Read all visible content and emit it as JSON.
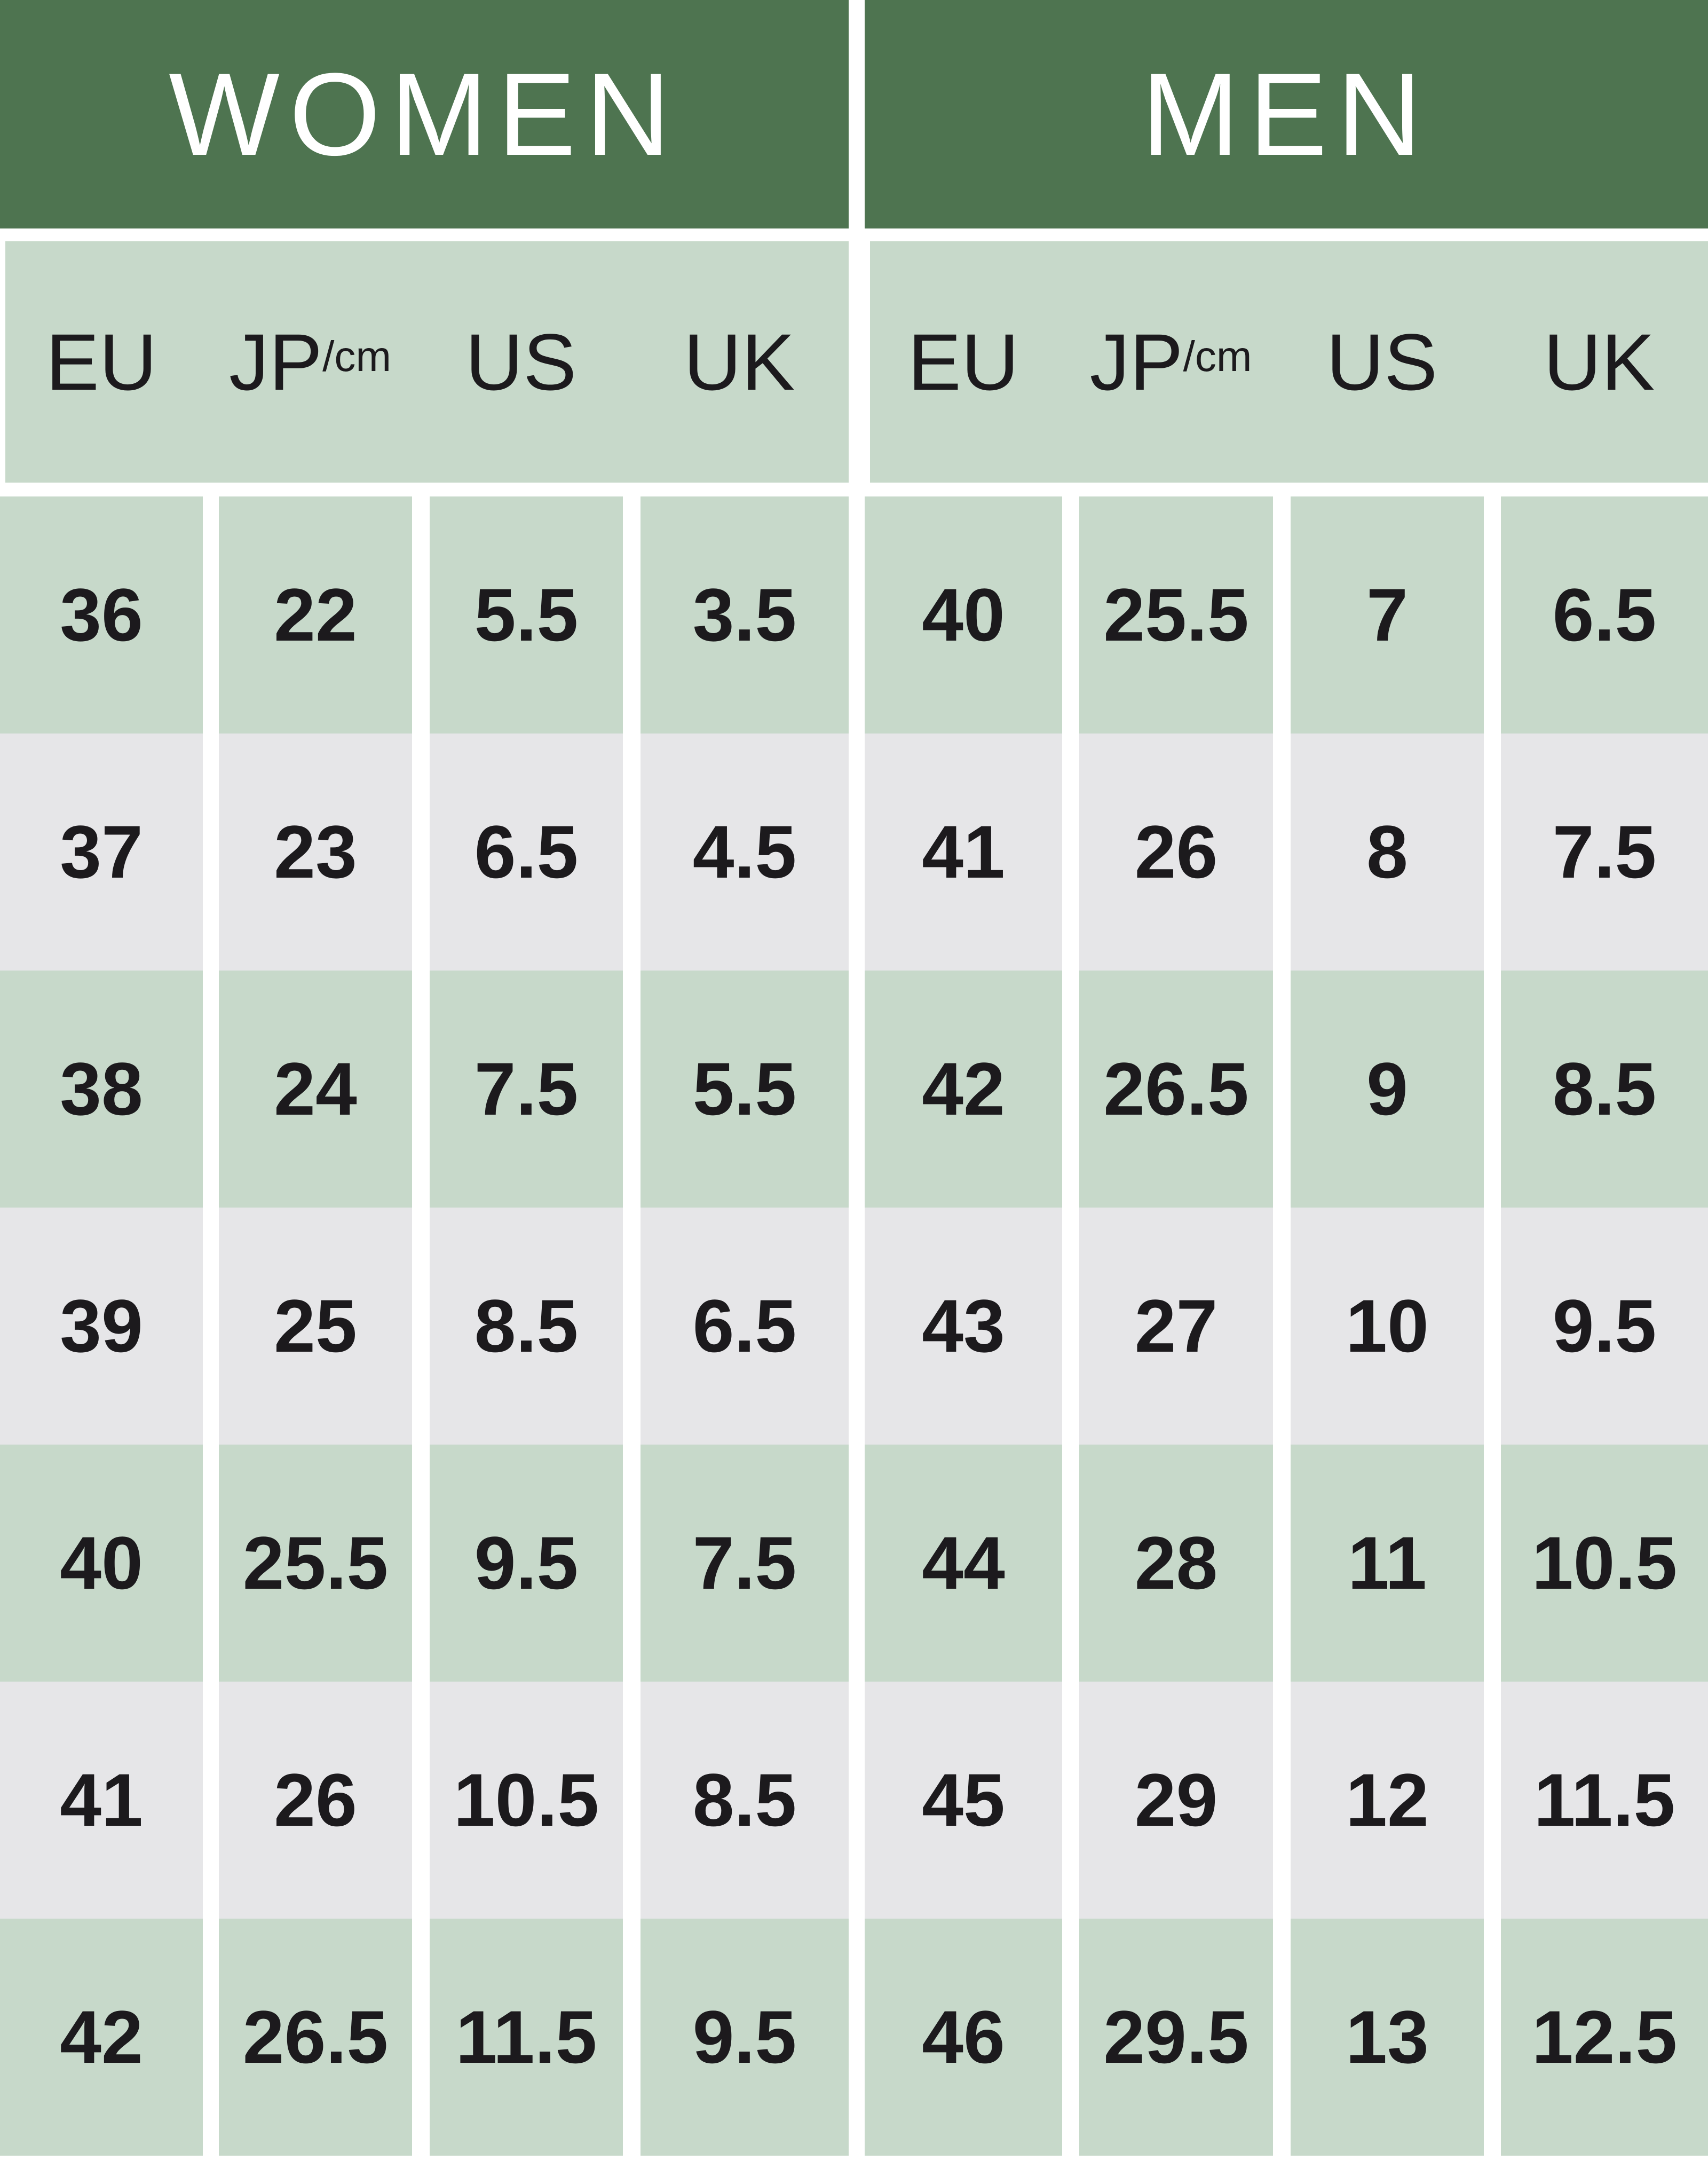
{
  "colors": {
    "header": "#4e7450",
    "green_row": "#c7d9ca",
    "gray_row": "#e6e6e8",
    "text": "#1c1a1d"
  },
  "columns": [
    {
      "label": "EU",
      "suffix": ""
    },
    {
      "label": "JP",
      "suffix": "/cm"
    },
    {
      "label": "US",
      "suffix": ""
    },
    {
      "label": "UK",
      "suffix": ""
    }
  ],
  "tables": [
    {
      "title": "WOMEN",
      "rows": [
        [
          "36",
          "22",
          "5.5",
          "3.5"
        ],
        [
          "37",
          "23",
          "6.5",
          "4.5"
        ],
        [
          "38",
          "24",
          "7.5",
          "5.5"
        ],
        [
          "39",
          "25",
          "8.5",
          "6.5"
        ],
        [
          "40",
          "25.5",
          "9.5",
          "7.5"
        ],
        [
          "41",
          "26",
          "10.5",
          "8.5"
        ],
        [
          "42",
          "26.5",
          "11.5",
          "9.5"
        ]
      ]
    },
    {
      "title": "MEN",
      "rows": [
        [
          "40",
          "25.5",
          "7",
          "6.5"
        ],
        [
          "41",
          "26",
          "8",
          "7.5"
        ],
        [
          "42",
          "26.5",
          "9",
          "8.5"
        ],
        [
          "43",
          "27",
          "10",
          "9.5"
        ],
        [
          "44",
          "28",
          "11",
          "10.5"
        ],
        [
          "45",
          "29",
          "12",
          "11.5"
        ],
        [
          "46",
          "29.5",
          "13",
          "12.5"
        ]
      ]
    }
  ]
}
